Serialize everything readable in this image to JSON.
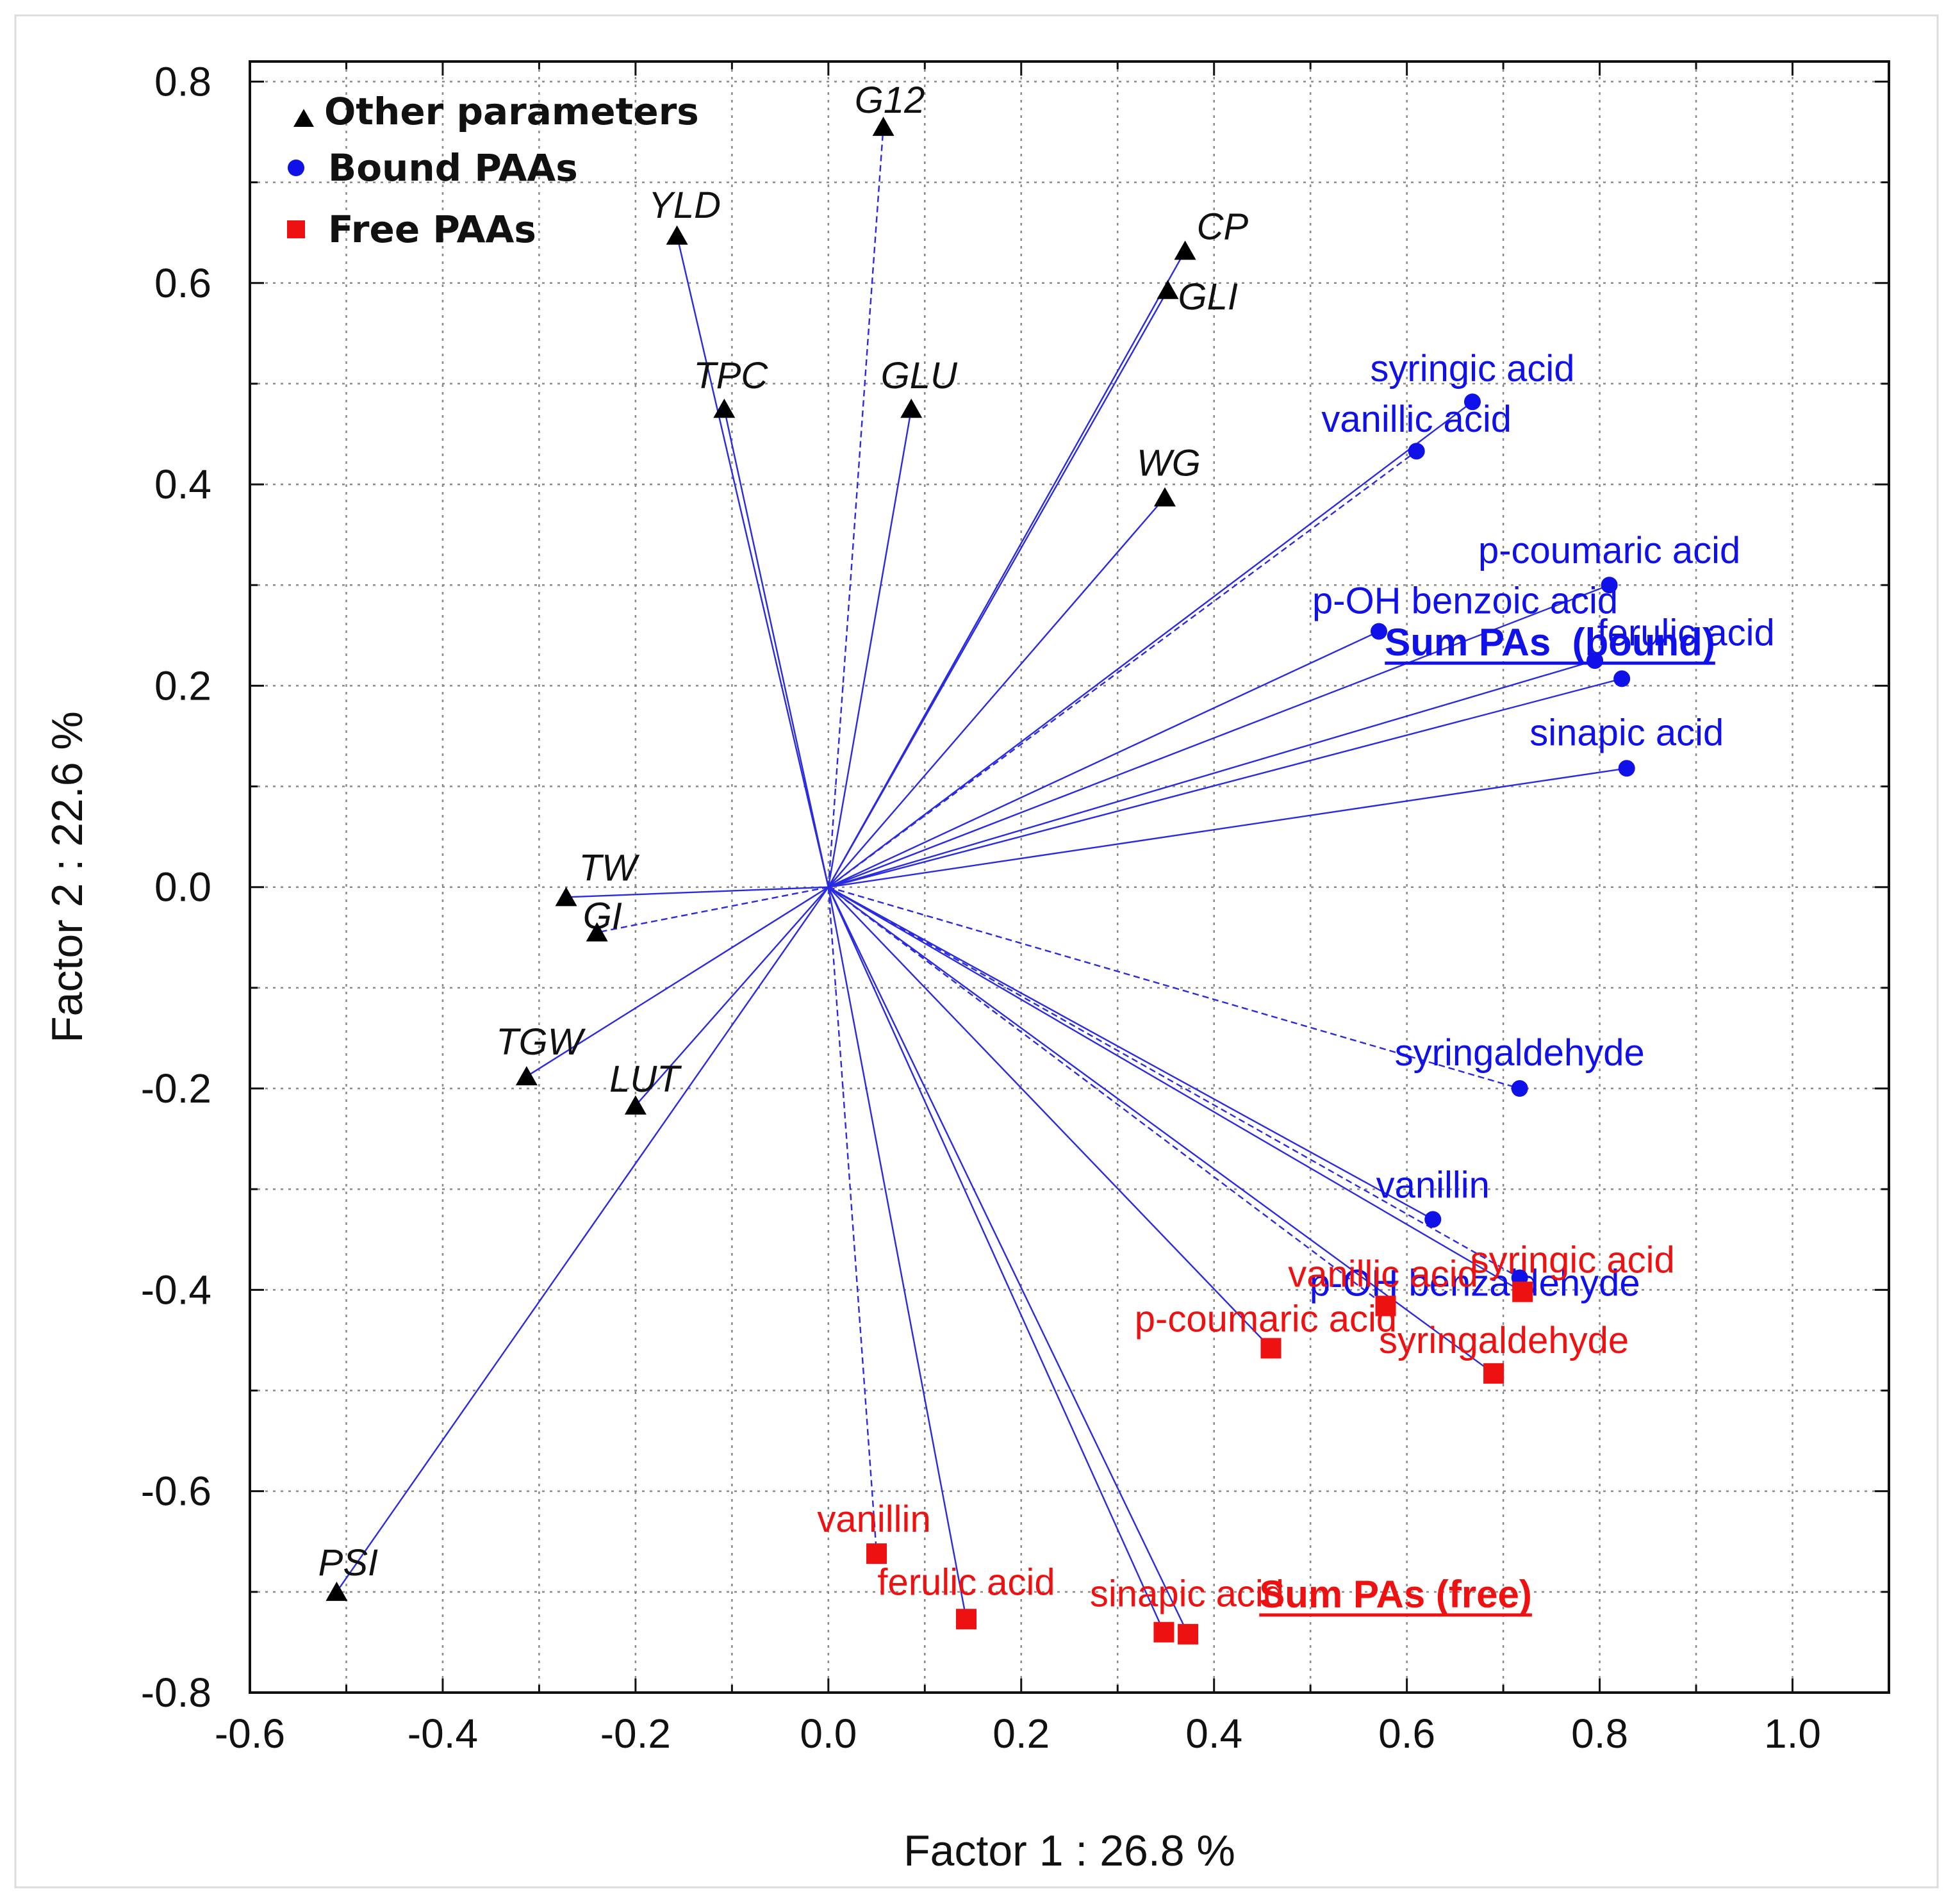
{
  "chart_data": {
    "type": "scatter",
    "xlabel": "Factor 1 : 26.8 %",
    "ylabel": "Factor 2 : 22.6 %",
    "xlim": [
      -0.6,
      1.1
    ],
    "ylim": [
      -0.8,
      0.82
    ],
    "x_ticks": [
      "-0.6",
      "-0.4",
      "-0.2",
      "0.0",
      "0.2",
      "0.4",
      "0.6",
      "0.8",
      "1.0"
    ],
    "y_ticks": [
      "0.8",
      "0.6",
      "0.4",
      "0.2",
      "0.0",
      "-0.2",
      "-0.4",
      "-0.6",
      "-0.8"
    ],
    "grid": true,
    "legend_position": "top-left",
    "colors": {
      "other": "#000000",
      "bound": "#1010e8",
      "free": "#ee1111",
      "vector": "#2a2ae0"
    },
    "series": [
      {
        "name": "Other parameters",
        "marker": "triangle",
        "points": [
          {
            "label": "G12",
            "x": 0.057,
            "y": 0.755,
            "dash": true
          },
          {
            "label": "YLD",
            "x": -0.157,
            "y": 0.647,
            "dash": false
          },
          {
            "label": "CP",
            "x": 0.37,
            "y": 0.632,
            "dash": false
          },
          {
            "label": "GLI",
            "x": 0.352,
            "y": 0.593,
            "dash": false
          },
          {
            "label": "TPC",
            "x": -0.108,
            "y": 0.475,
            "dash": false
          },
          {
            "label": "GLU",
            "x": 0.086,
            "y": 0.475,
            "dash": false
          },
          {
            "label": "WG",
            "x": 0.349,
            "y": 0.387,
            "dash": false
          },
          {
            "label": "TW",
            "x": -0.272,
            "y": -0.01,
            "dash": false
          },
          {
            "label": "GI",
            "x": -0.24,
            "y": -0.045,
            "dash": true
          },
          {
            "label": "TGW",
            "x": -0.313,
            "y": -0.188,
            "dash": false
          },
          {
            "label": "LUT",
            "x": -0.2,
            "y": -0.217,
            "dash": false
          },
          {
            "label": "PSI",
            "x": -0.51,
            "y": -0.7,
            "dash": false
          }
        ]
      },
      {
        "name": "Bound PAAs",
        "marker": "circle",
        "points": [
          {
            "label": "syringic acid",
            "x": 0.668,
            "y": 0.482,
            "dash": false
          },
          {
            "label": "vanillic acid",
            "x": 0.61,
            "y": 0.433,
            "dash": true
          },
          {
            "label": "p-coumaric acid",
            "x": 0.81,
            "y": 0.3,
            "dash": false
          },
          {
            "label": "p-OH benzoic acid",
            "x": 0.571,
            "y": 0.254,
            "dash": false
          },
          {
            "label": "Sum PAs  (bound)",
            "x": 0.795,
            "y": 0.225,
            "dash": false
          },
          {
            "label": "ferulic acid",
            "x": 0.823,
            "y": 0.207,
            "dash": false
          },
          {
            "label": "sinapic acid",
            "x": 0.828,
            "y": 0.118,
            "dash": false
          },
          {
            "label": "syringaldehyde",
            "x": 0.717,
            "y": -0.2,
            "dash": true
          },
          {
            "label": "vanillin",
            "x": 0.627,
            "y": -0.33,
            "dash": false
          },
          {
            "label": "p-OH benzaldehyde",
            "x": 0.717,
            "y": -0.388,
            "dash": true
          }
        ]
      },
      {
        "name": "Free PAAs",
        "marker": "square",
        "points": [
          {
            "label": "syringic acid",
            "x": 0.72,
            "y": -0.402,
            "dash": false
          },
          {
            "label": "vanillic acid",
            "x": 0.578,
            "y": -0.416,
            "dash": true
          },
          {
            "label": "p-coumaric acid",
            "x": 0.459,
            "y": -0.458,
            "dash": false
          },
          {
            "label": "syringaldehyde",
            "x": 0.69,
            "y": -0.483,
            "dash": false
          },
          {
            "label": "vanillin",
            "x": 0.05,
            "y": -0.662,
            "dash": true
          },
          {
            "label": "ferulic acid",
            "x": 0.143,
            "y": -0.727,
            "dash": false
          },
          {
            "label": "sinapic acid",
            "x": 0.348,
            "y": -0.74,
            "dash": false
          },
          {
            "label": "Sum PAs (free)",
            "x": 0.373,
            "y": -0.742,
            "dash": false
          }
        ]
      }
    ]
  }
}
